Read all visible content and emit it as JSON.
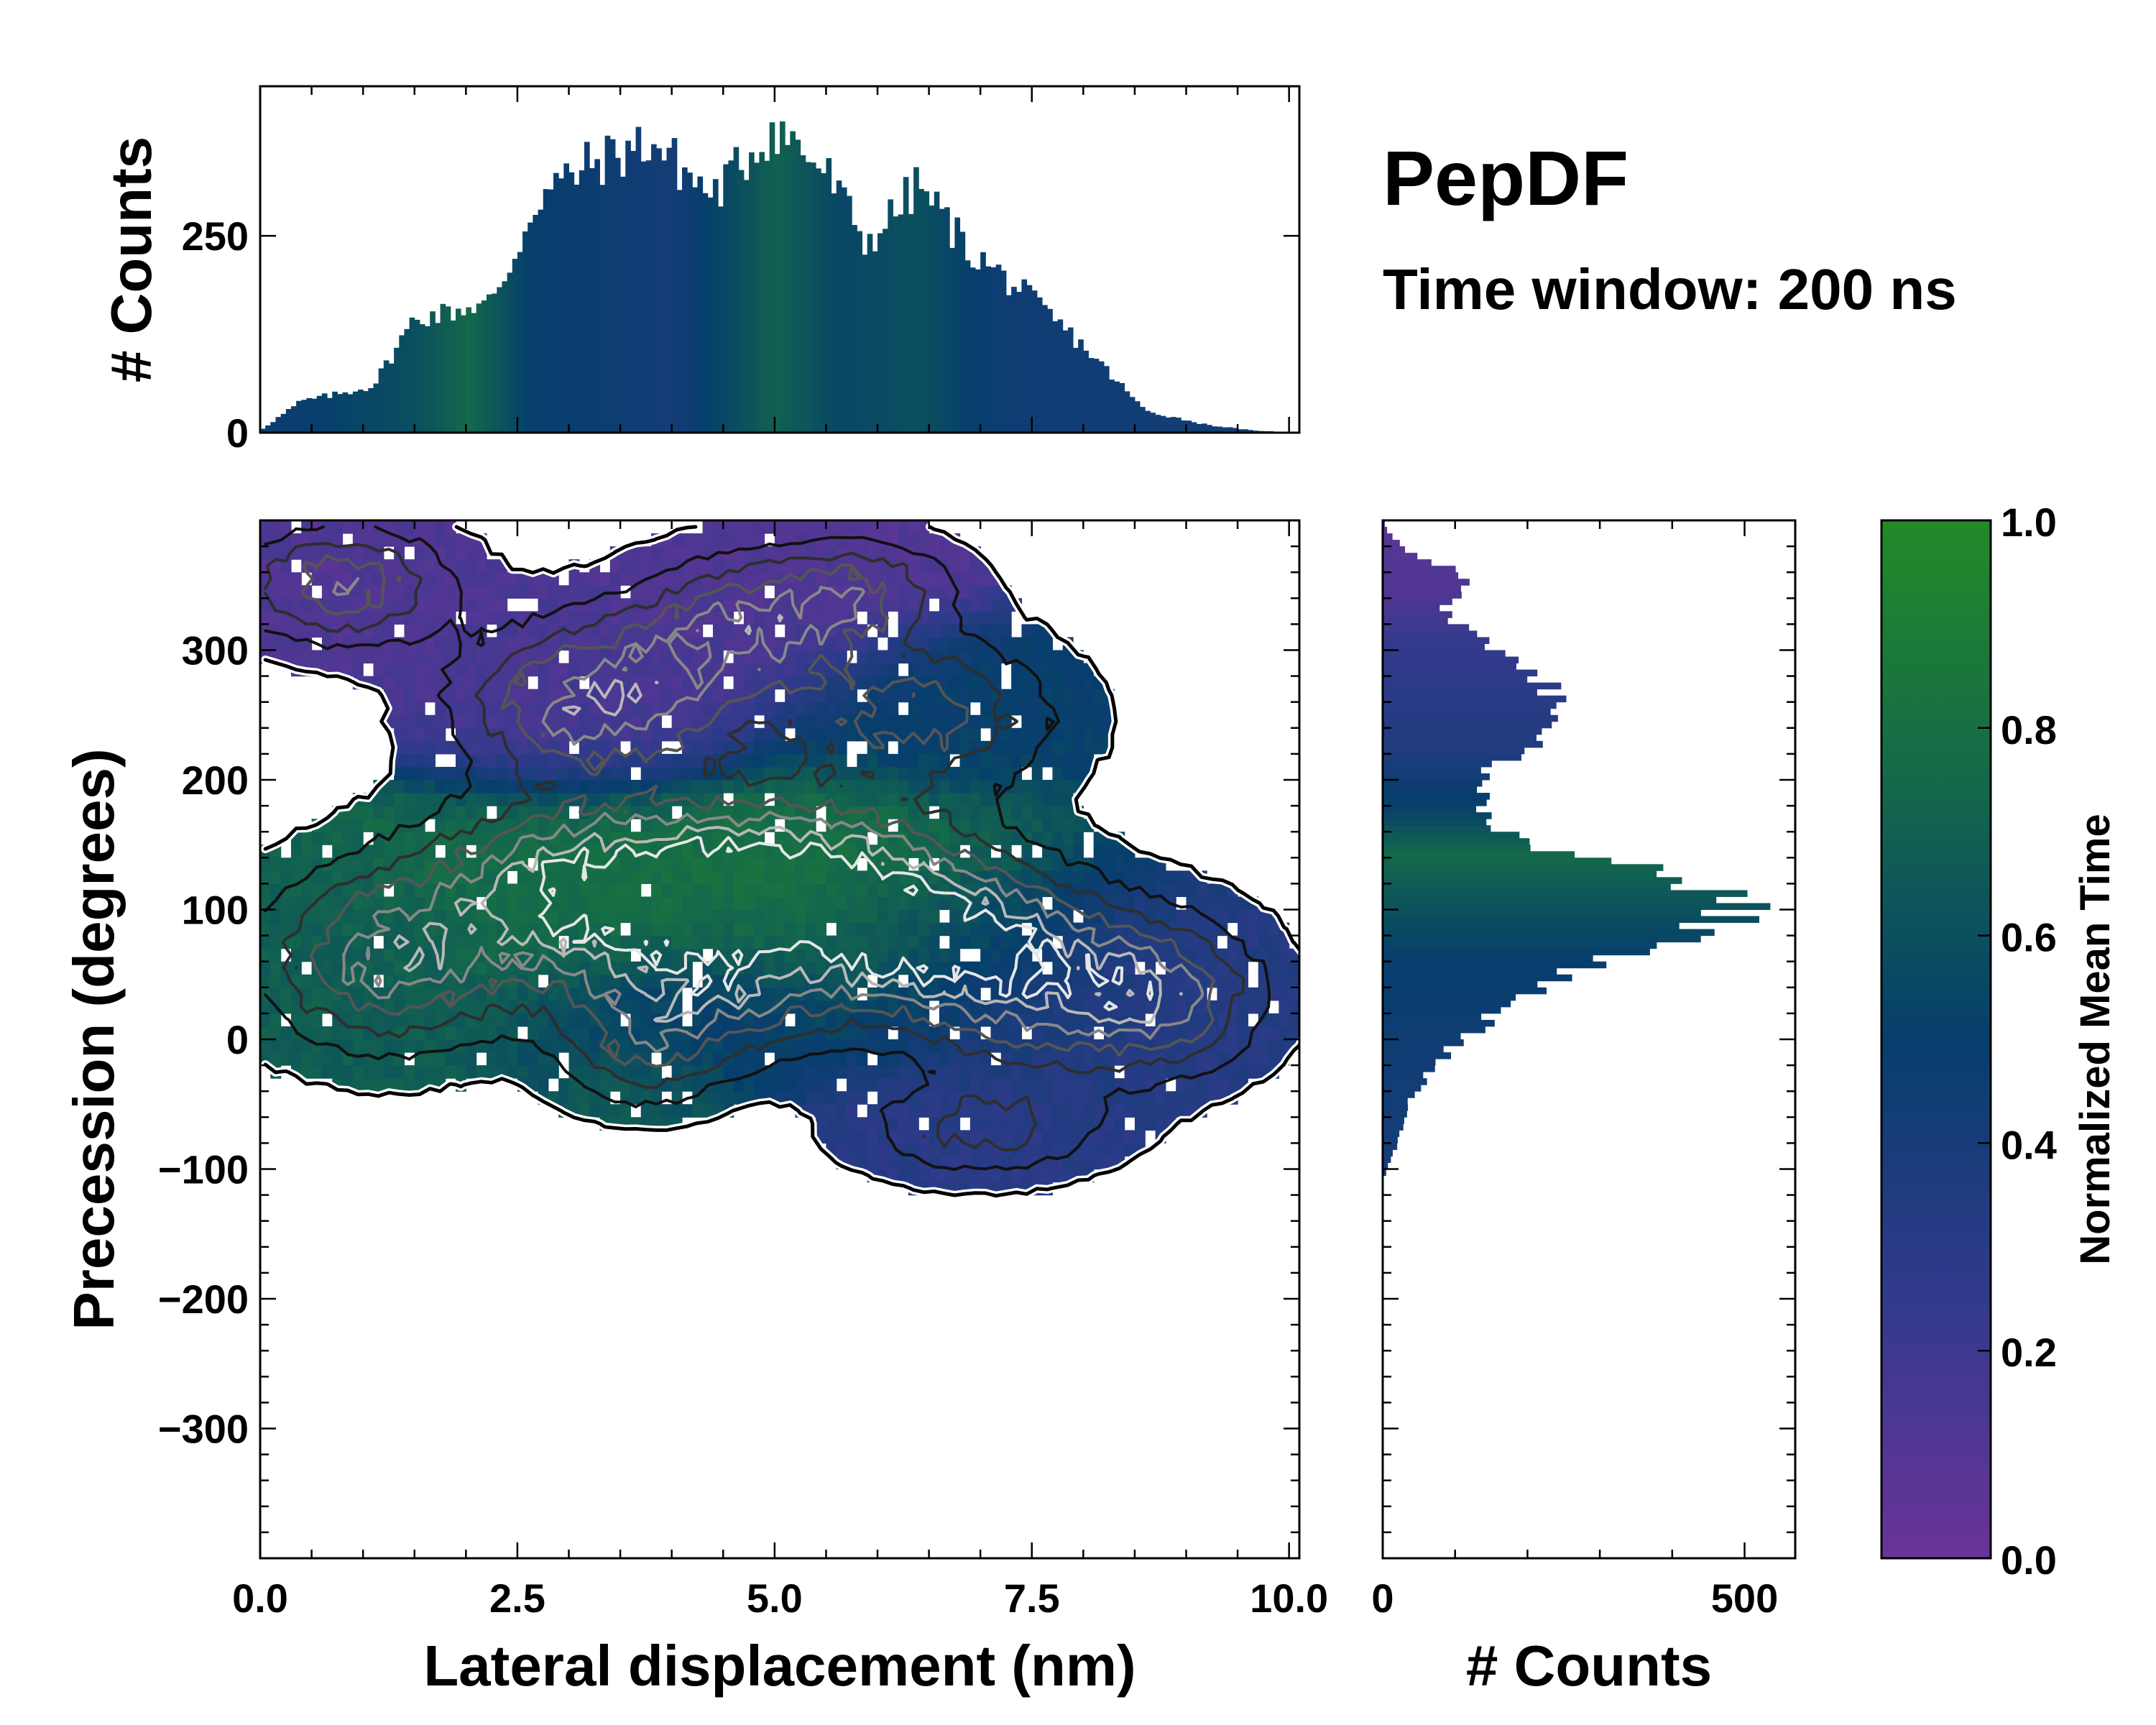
{
  "chart_data": [
    {
      "id": "top-histogram",
      "type": "bar",
      "description_role": "marginal histogram of lateral displacement, bars colored by normalized mean time",
      "xlim": [
        0,
        10.1
      ],
      "ylim": [
        0,
        440
      ],
      "xlabel": "",
      "ylabel": "# Counts",
      "yticks": [
        0,
        250
      ],
      "bin_width": 0.05,
      "profile": [
        {
          "x": 0.0,
          "count": 3
        },
        {
          "x": 0.4,
          "count": 40
        },
        {
          "x": 0.8,
          "count": 50
        },
        {
          "x": 1.1,
          "count": 60
        },
        {
          "x": 1.5,
          "count": 145
        },
        {
          "x": 1.9,
          "count": 155
        },
        {
          "x": 2.3,
          "count": 170
        },
        {
          "x": 2.7,
          "count": 300
        },
        {
          "x": 3.2,
          "count": 340
        },
        {
          "x": 3.8,
          "count": 370
        },
        {
          "x": 4.4,
          "count": 300
        },
        {
          "x": 5.0,
          "count": 390
        },
        {
          "x": 5.5,
          "count": 330
        },
        {
          "x": 5.9,
          "count": 240
        },
        {
          "x": 6.4,
          "count": 315
        },
        {
          "x": 6.9,
          "count": 230
        },
        {
          "x": 7.4,
          "count": 180
        },
        {
          "x": 8.0,
          "count": 110
        },
        {
          "x": 8.6,
          "count": 28
        },
        {
          "x": 9.2,
          "count": 10
        },
        {
          "x": 9.7,
          "count": 2
        }
      ],
      "time_profile": [
        {
          "x": 0.0,
          "t": 0.45
        },
        {
          "x": 1.5,
          "t": 0.6
        },
        {
          "x": 2.0,
          "t": 0.75
        },
        {
          "x": 2.6,
          "t": 0.5
        },
        {
          "x": 4.0,
          "t": 0.42
        },
        {
          "x": 5.0,
          "t": 0.7
        },
        {
          "x": 5.6,
          "t": 0.55
        },
        {
          "x": 6.4,
          "t": 0.6
        },
        {
          "x": 7.2,
          "t": 0.45
        },
        {
          "x": 10.0,
          "t": 0.42
        }
      ]
    },
    {
      "id": "main-2d",
      "type": "heatmap",
      "description_role": "2D density with contours, colored by normalized mean time",
      "xlim": [
        0,
        10.1
      ],
      "ylim": [
        -400,
        400
      ],
      "xlabel": "Lateral displacement (nm)",
      "ylabel": "Precession (degrees)",
      "xticks": [
        0,
        2.5,
        5,
        7.5,
        10
      ],
      "xtick_labels": [
        "0.0",
        "2.5",
        "5.0",
        "7.5",
        "10.0"
      ],
      "yticks": [
        -300,
        -200,
        -100,
        0,
        100,
        200,
        300
      ],
      "ytick_labels": [
        "−300",
        "−200",
        "−100",
        "0",
        "100",
        "200",
        "300"
      ],
      "grid": false,
      "clusters": [
        {
          "x": 0.8,
          "y": 350,
          "sx": 0.7,
          "sy": 30,
          "t": 0.12,
          "w": 0.8
        },
        {
          "x": 3.3,
          "y": 260,
          "sx": 0.9,
          "sy": 40,
          "t": 0.15,
          "w": 1.0
        },
        {
          "x": 4.8,
          "y": 320,
          "sx": 0.8,
          "sy": 35,
          "t": 0.12,
          "w": 0.8
        },
        {
          "x": 5.9,
          "y": 350,
          "sx": 0.6,
          "sy": 25,
          "t": 0.1,
          "w": 0.5
        },
        {
          "x": 6.4,
          "y": 250,
          "sx": 0.9,
          "sy": 40,
          "t": 0.5,
          "w": 0.7
        },
        {
          "x": 1.2,
          "y": 60,
          "sx": 0.8,
          "sy": 45,
          "t": 0.68,
          "w": 0.9
        },
        {
          "x": 3.2,
          "y": 115,
          "sx": 1.1,
          "sy": 45,
          "t": 0.78,
          "w": 1.2
        },
        {
          "x": 5.2,
          "y": 120,
          "sx": 1.1,
          "sy": 45,
          "t": 0.82,
          "w": 1.2
        },
        {
          "x": 4.2,
          "y": 30,
          "sx": 0.9,
          "sy": 35,
          "t": 0.45,
          "w": 0.8
        },
        {
          "x": 6.5,
          "y": 80,
          "sx": 0.9,
          "sy": 40,
          "t": 0.6,
          "w": 0.9
        },
        {
          "x": 7.8,
          "y": 40,
          "sx": 1.0,
          "sy": 45,
          "t": 0.35,
          "w": 0.9
        },
        {
          "x": 8.8,
          "y": 30,
          "sx": 0.6,
          "sy": 35,
          "t": 0.3,
          "w": 0.5
        },
        {
          "x": 7.0,
          "y": -70,
          "sx": 0.8,
          "sy": 25,
          "t": 0.3,
          "w": 0.5
        },
        {
          "x": 3.7,
          "y": -20,
          "sx": 0.5,
          "sy": 25,
          "t": 0.7,
          "w": 0.4
        }
      ]
    },
    {
      "id": "right-histogram",
      "type": "bar",
      "orientation": "horizontal",
      "description_role": "marginal histogram of precession, bars colored by normalized mean time",
      "xlim": [
        0,
        570
      ],
      "ylim": [
        -400,
        400
      ],
      "xlabel": "# Counts",
      "xticks": [
        0,
        500
      ],
      "bin_width": 5,
      "profile": [
        {
          "y": -100,
          "count": 5
        },
        {
          "y": -80,
          "count": 20
        },
        {
          "y": -50,
          "count": 35
        },
        {
          "y": -20,
          "count": 70
        },
        {
          "y": 0,
          "count": 110
        },
        {
          "y": 30,
          "count": 180
        },
        {
          "y": 60,
          "count": 300
        },
        {
          "y": 90,
          "count": 470
        },
        {
          "y": 105,
          "count": 520
        },
        {
          "y": 130,
          "count": 370
        },
        {
          "y": 150,
          "count": 200
        },
        {
          "y": 170,
          "count": 140
        },
        {
          "y": 200,
          "count": 130
        },
        {
          "y": 230,
          "count": 210
        },
        {
          "y": 270,
          "count": 240
        },
        {
          "y": 300,
          "count": 160
        },
        {
          "y": 330,
          "count": 80
        },
        {
          "y": 355,
          "count": 120
        },
        {
          "y": 380,
          "count": 25
        },
        {
          "y": 395,
          "count": 3
        }
      ],
      "time_profile": [
        {
          "y": -100,
          "t": 0.4
        },
        {
          "y": 0,
          "t": 0.45
        },
        {
          "y": 60,
          "t": 0.5
        },
        {
          "y": 100,
          "t": 0.62
        },
        {
          "y": 140,
          "t": 0.75
        },
        {
          "y": 170,
          "t": 0.55
        },
        {
          "y": 220,
          "t": 0.35
        },
        {
          "y": 300,
          "t": 0.25
        },
        {
          "y": 340,
          "t": 0.12
        },
        {
          "y": 400,
          "t": 0.08
        }
      ]
    }
  ],
  "title": "PepDF",
  "subtitle": "Time window: 200 ns",
  "colorbar": {
    "label": "Normalized Mean Time",
    "range": [
      0,
      1
    ],
    "ticks": [
      "0.0",
      "0.2",
      "0.4",
      "0.6",
      "0.8",
      "1.0"
    ],
    "stops": [
      {
        "t": 0.0,
        "color": "#6a3398"
      },
      {
        "t": 0.25,
        "color": "#323a8c"
      },
      {
        "t": 0.5,
        "color": "#063e6c"
      },
      {
        "t": 0.75,
        "color": "#14694a"
      },
      {
        "t": 1.0,
        "color": "#238a28"
      }
    ]
  },
  "top_histogram_ylabel": "# Counts",
  "right_histogram_xlabel": "# Counts"
}
